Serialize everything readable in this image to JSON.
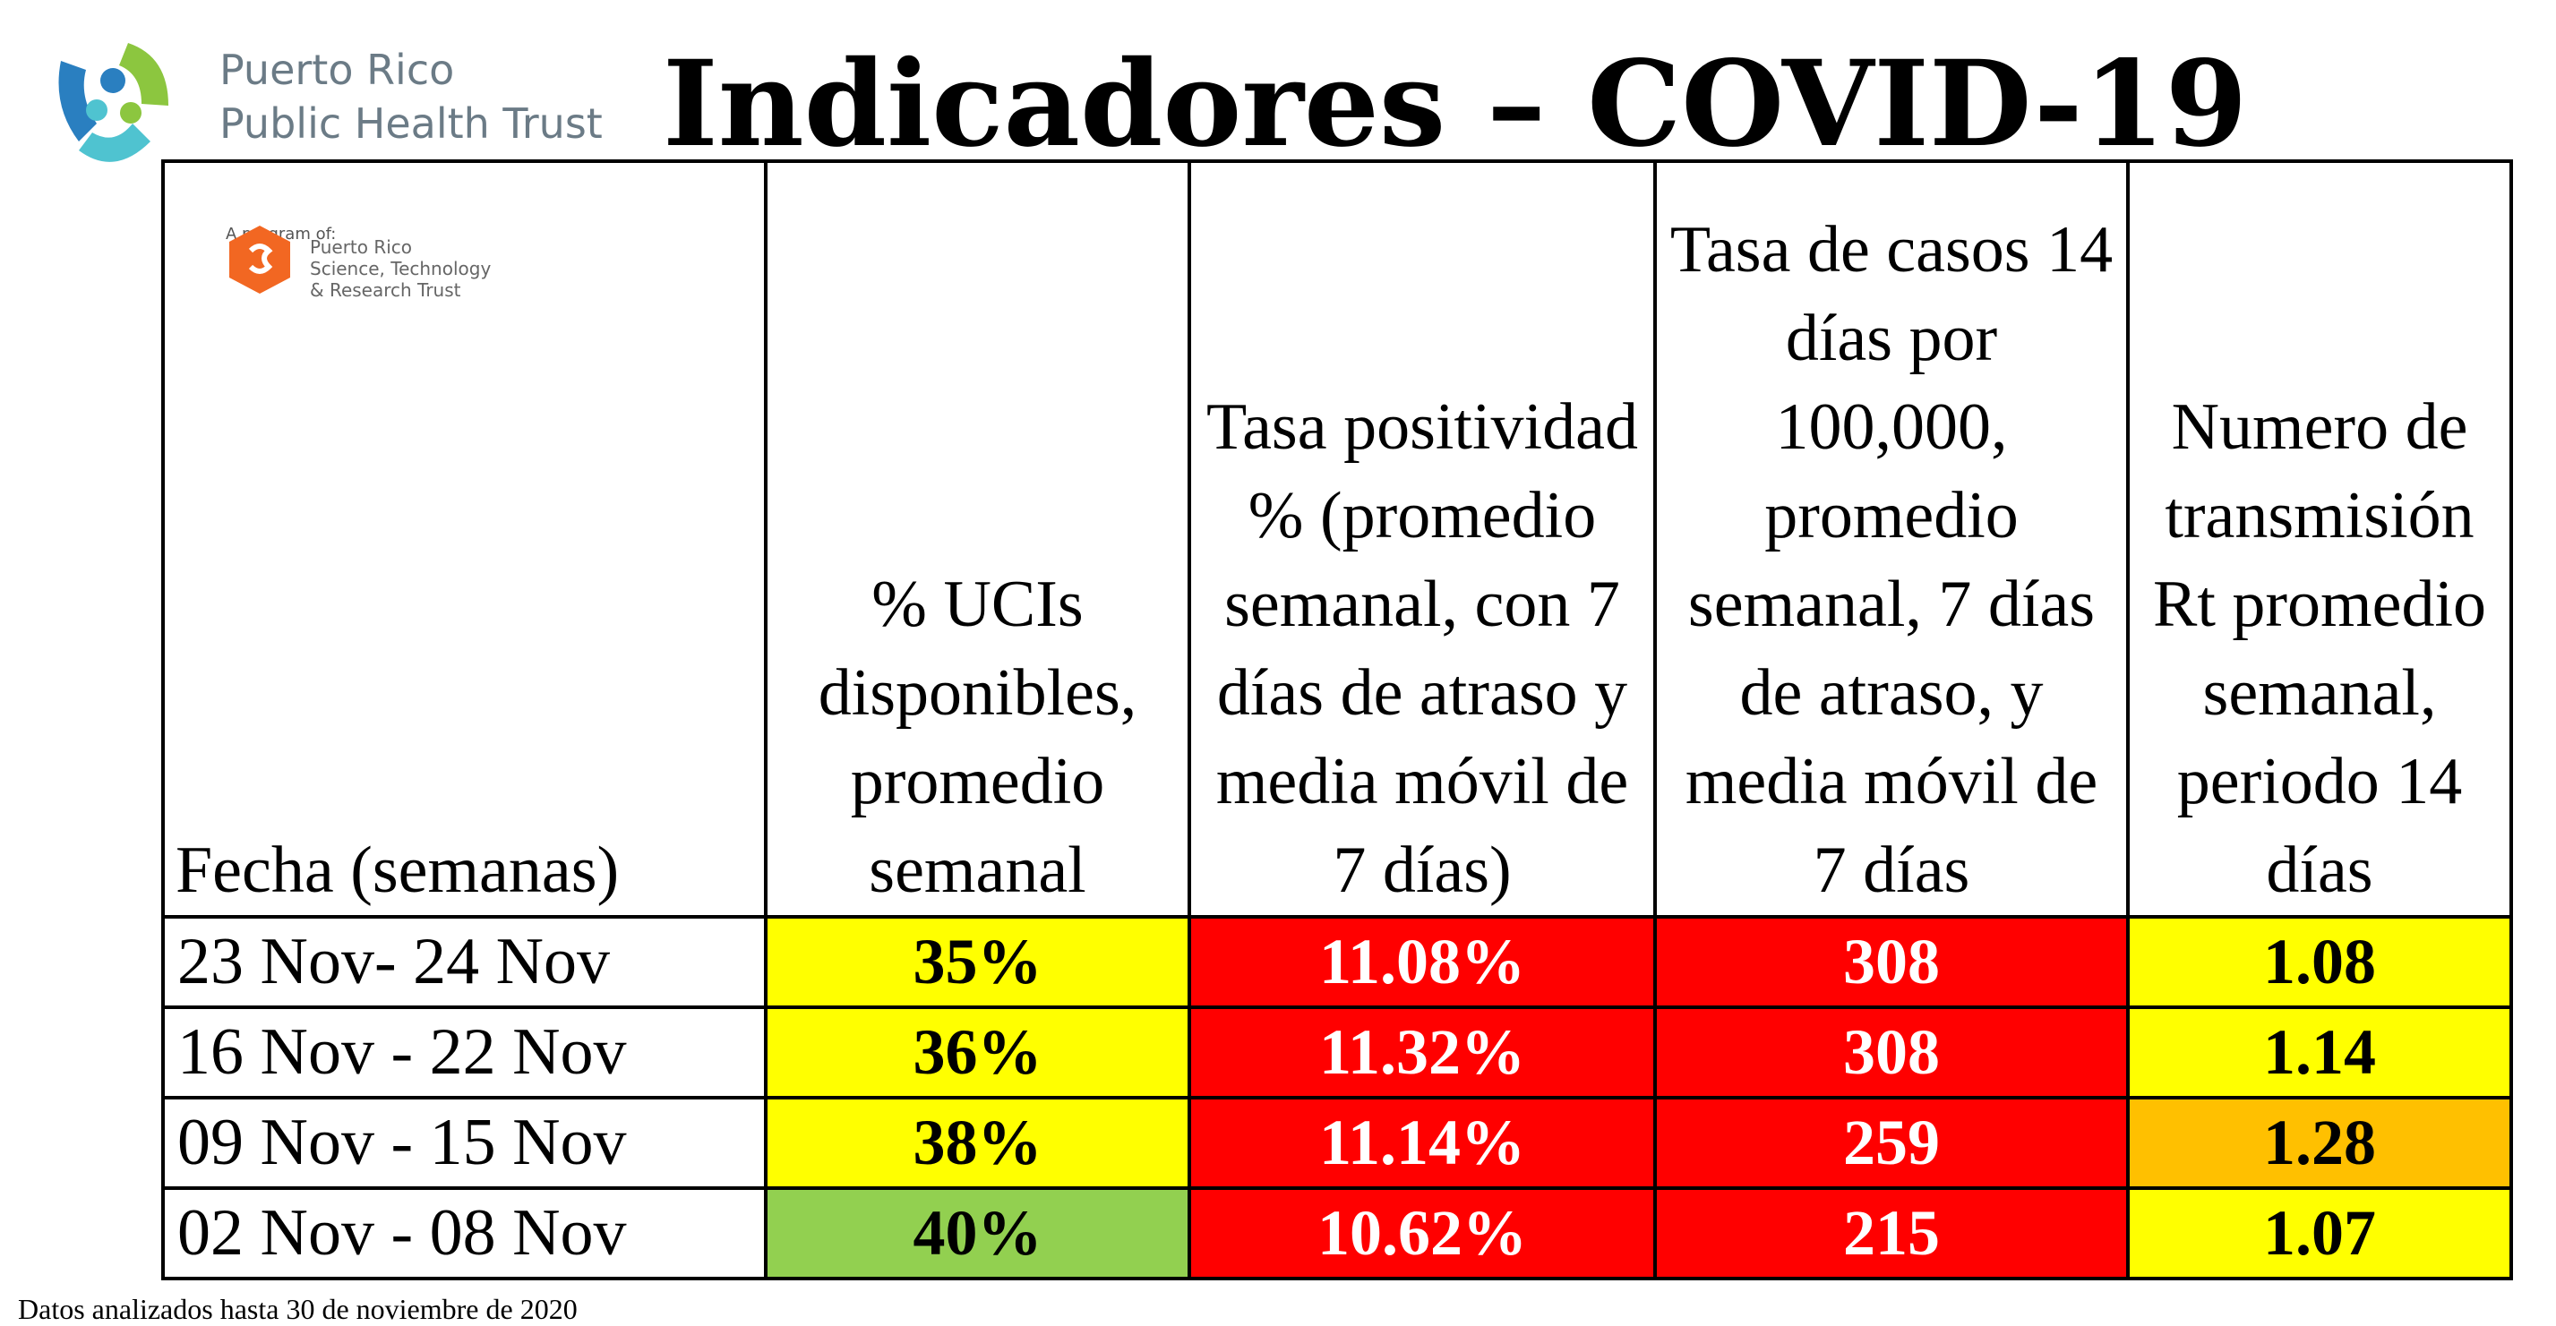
{
  "header": {
    "org_name_line1": "Puerto Rico",
    "org_name_line2": "Public Health Trust",
    "title": "Indicadores – COVID-19"
  },
  "sub_logo": {
    "program_label": "A program of:",
    "trust_line1": "Puerto Rico",
    "trust_line2": "Science, Technology",
    "trust_line3": "& Research Trust"
  },
  "table": {
    "headers": {
      "fecha": "Fecha (semanas)",
      "ucis": "% UCIs disponibles, promedio semanal",
      "positividad": "Tasa positividad % (promedio semanal, con 7 días de atraso y media móvil de 7 días)",
      "casos": "Tasa de casos 14 días por 100,000, promedio semanal, 7 días de atraso, y media móvil de 7 días",
      "rt": "Numero de transmisión Rt promedio semanal, periodo 14 días"
    },
    "rows": [
      {
        "fecha": "23 Nov- 24 Nov",
        "ucis": "35%",
        "positividad": "11.08%",
        "casos": "308",
        "rt": "1.08"
      },
      {
        "fecha": "16 Nov - 22 Nov",
        "ucis": "36%",
        "positividad": "11.32%",
        "casos": "308",
        "rt": "1.14"
      },
      {
        "fecha": "09 Nov - 15 Nov",
        "ucis": "38%",
        "positividad": "11.14%",
        "casos": "259",
        "rt": "1.28"
      },
      {
        "fecha": "02 Nov - 08 Nov",
        "ucis": "40%",
        "positividad": "10.62%",
        "casos": "215",
        "rt": "1.07"
      }
    ]
  },
  "colors": {
    "yellow": "#ffff00",
    "red": "#ff0000",
    "green": "#92d050",
    "orange": "#ffc000"
  },
  "footnote": "Datos analizados hasta 30 de noviembre de 2020"
}
